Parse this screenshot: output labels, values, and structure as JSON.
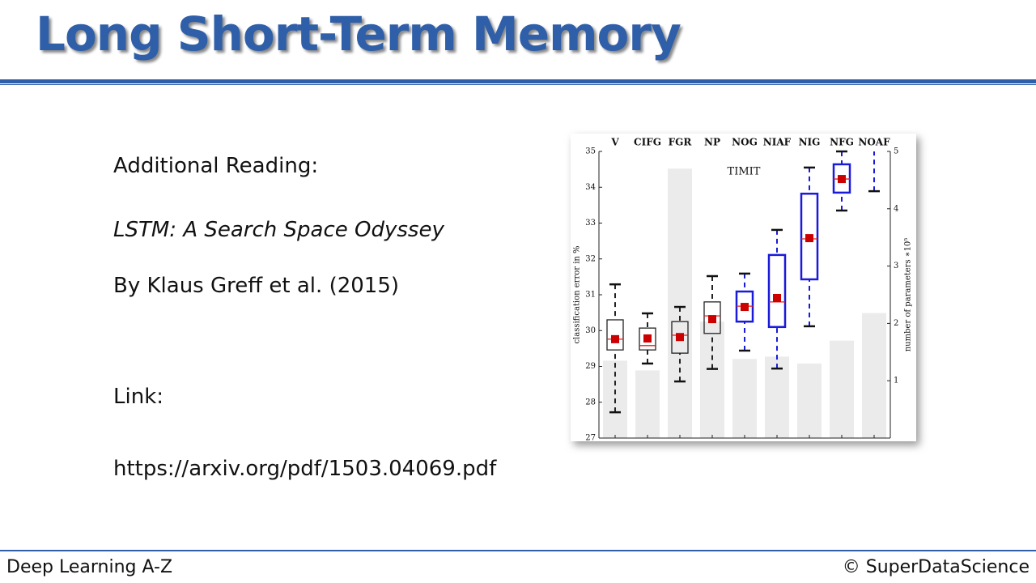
{
  "header": {
    "title": "Long Short-Term Memory"
  },
  "content": {
    "heading": "Additional Reading:",
    "paper_title": "LSTM: A Search Space Odyssey",
    "authors": "By Klaus Greff et al. (2015)",
    "link_label": "Link:",
    "link": "https://arxiv.org/pdf/1503.04069.pdf"
  },
  "chart_data": {
    "type": "box",
    "title": "TIMIT",
    "categories": [
      "V",
      "CIFG",
      "FGR",
      "NP",
      "NOG",
      "NIAF",
      "NIG",
      "NFG",
      "NOAF"
    ],
    "ylabel": "classification error in %",
    "y2label": "number of parameters ∗10⁵",
    "ylim": [
      27,
      35
    ],
    "yticks": [
      27,
      28,
      29,
      30,
      31,
      32,
      33,
      34,
      35
    ],
    "y2lim": [
      0,
      5
    ],
    "y2ticks": [
      1,
      2,
      3,
      4,
      5
    ],
    "boxes": {
      "whisker_low": [
        27.72,
        29.08,
        28.58,
        28.93,
        29.44,
        28.94,
        30.12,
        33.35,
        33.89
      ],
      "q1": [
        29.46,
        29.46,
        29.37,
        29.92,
        30.25,
        30.1,
        31.43,
        33.85,
        null
      ],
      "median": [
        29.76,
        29.58,
        29.87,
        30.41,
        30.68,
        30.8,
        32.56,
        34.23,
        null
      ],
      "q3": [
        30.3,
        30.07,
        30.25,
        30.8,
        31.09,
        32.11,
        33.82,
        34.64,
        null
      ],
      "whisker_high": [
        31.29,
        30.48,
        30.66,
        31.52,
        31.59,
        32.81,
        34.55,
        35.0,
        null
      ],
      "mean": [
        29.76,
        29.78,
        29.82,
        30.32,
        30.66,
        30.91,
        32.58,
        34.23,
        null
      ],
      "colors": [
        "#222222",
        "#222222",
        "#222222",
        "#222222",
        "#1a1adb",
        "#1a1adb",
        "#1a1adb",
        "#1a1adb",
        "#1a1adb"
      ],
      "median_color": "#e02020",
      "mean_color": "#cc0000"
    },
    "parameters": {
      "axis": "y2",
      "color": "#ebebeb",
      "values": [
        1.35,
        1.18,
        4.7,
        2.03,
        1.38,
        1.42,
        1.3,
        1.7,
        2.18
      ]
    }
  },
  "footer": {
    "left": "Deep Learning A-Z",
    "right": "© SuperDataScience"
  }
}
